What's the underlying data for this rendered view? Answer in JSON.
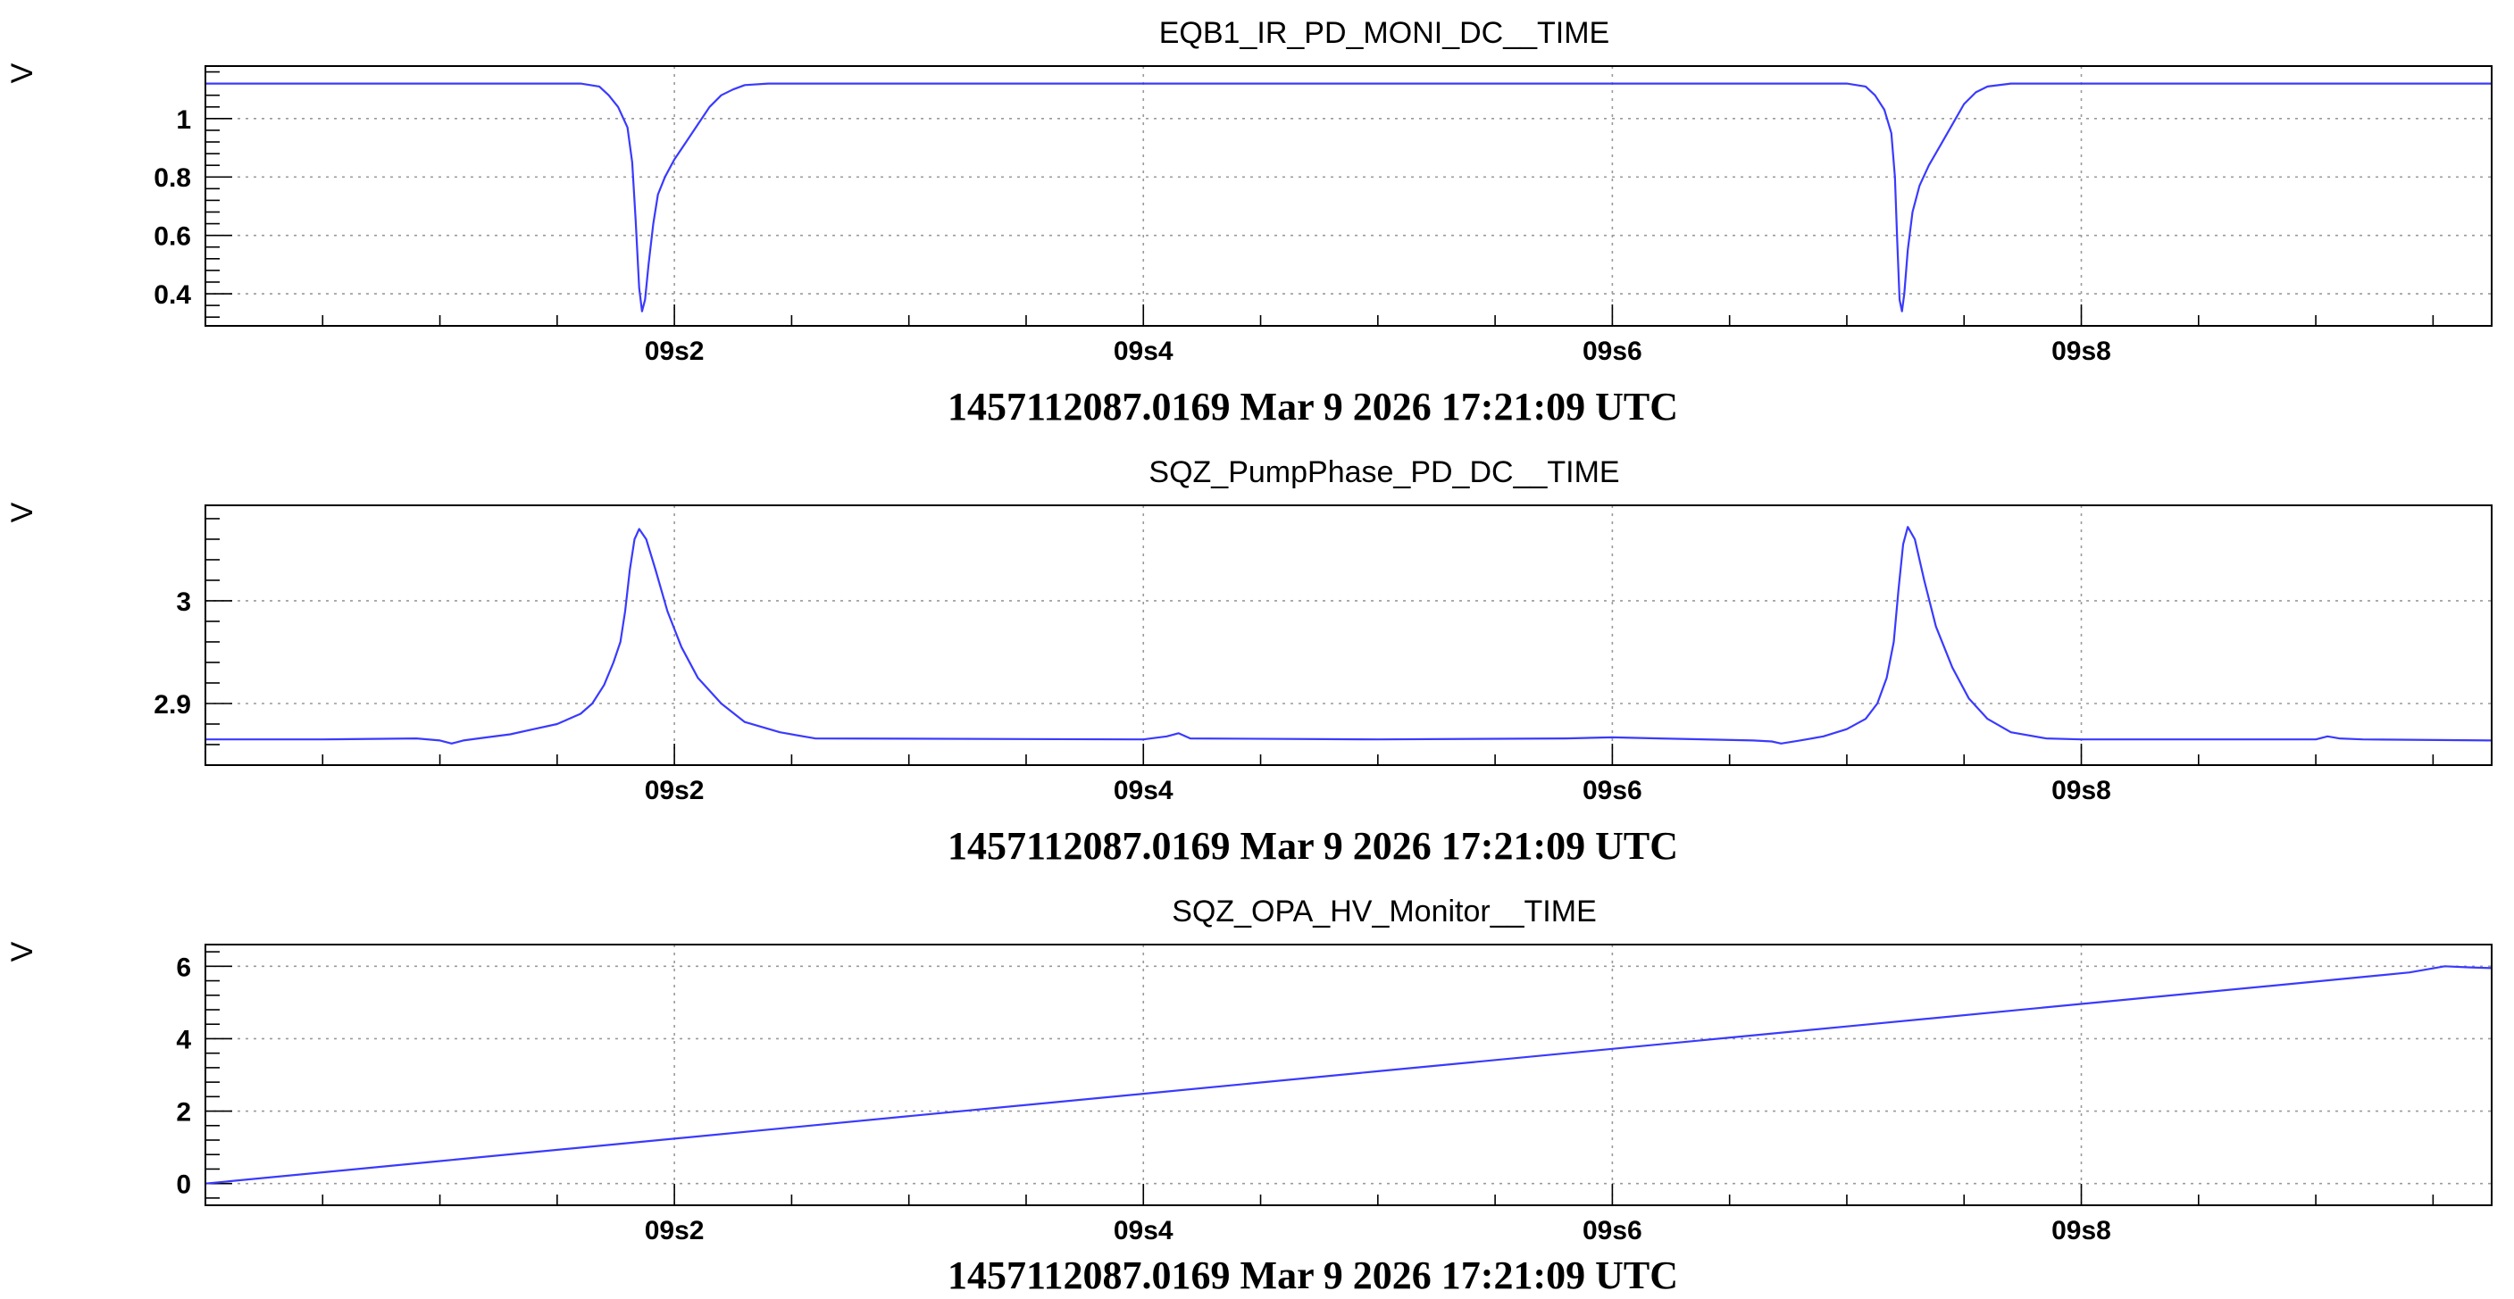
{
  "chart_data": [
    {
      "type": "line",
      "title": "EQB1_IR_PD_MONI_DC__TIME",
      "ylabel": "V",
      "xlabel": "1457112087.0169 Mar 9 2026 17:21:09 UTC",
      "xlim": [
        0,
        0.975
      ],
      "ylim": [
        0.29,
        1.18
      ],
      "y_major_ticks": [
        0.4,
        0.6,
        0.8,
        1
      ],
      "y_tick_labels": [
        "0.4",
        "0.6",
        "0.8",
        "1"
      ],
      "x_major_ticks": [
        0.2,
        0.4,
        0.6,
        0.8
      ],
      "x_tick_labels": [
        "09s2",
        "09s4",
        "09s6",
        "09s8"
      ],
      "grid": true,
      "series": [
        {
          "color": "#3a3aff",
          "x": [
            0,
            0.16,
            0.168,
            0.172,
            0.176,
            0.18,
            0.182,
            0.1835,
            0.185,
            0.1862,
            0.1875,
            0.189,
            0.191,
            0.193,
            0.196,
            0.2,
            0.205,
            0.21,
            0.215,
            0.22,
            0.225,
            0.23,
            0.24,
            0.7,
            0.708,
            0.712,
            0.716,
            0.719,
            0.7205,
            0.7215,
            0.7225,
            0.7235,
            0.7245,
            0.726,
            0.728,
            0.731,
            0.735,
            0.74,
            0.745,
            0.75,
            0.755,
            0.76,
            0.77,
            0.975
          ],
          "values": [
            1.12,
            1.12,
            1.11,
            1.08,
            1.04,
            0.97,
            0.85,
            0.65,
            0.42,
            0.34,
            0.38,
            0.5,
            0.64,
            0.74,
            0.8,
            0.86,
            0.92,
            0.98,
            1.04,
            1.08,
            1.1,
            1.115,
            1.12,
            1.12,
            1.11,
            1.08,
            1.03,
            0.95,
            0.8,
            0.58,
            0.38,
            0.34,
            0.4,
            0.55,
            0.68,
            0.77,
            0.84,
            0.91,
            0.98,
            1.05,
            1.09,
            1.11,
            1.12,
            1.12
          ]
        }
      ]
    },
    {
      "type": "line",
      "title": "SQZ_PumpPhase_PD_DC__TIME",
      "ylabel": "V",
      "xlabel": "1457112087.0169 Mar 9 2026 17:21:09 UTC",
      "xlim": [
        0,
        0.975
      ],
      "ylim": [
        2.84,
        3.093
      ],
      "y_major_ticks": [
        2.9,
        3.0
      ],
      "y_tick_labels": [
        "2.9",
        "3"
      ],
      "x_major_ticks": [
        0.2,
        0.4,
        0.6,
        0.8
      ],
      "x_tick_labels": [
        "09s2",
        "09s4",
        "09s6",
        "09s8"
      ],
      "grid": true,
      "series": [
        {
          "color": "#3a3aff",
          "x": [
            0,
            0.05,
            0.09,
            0.1,
            0.105,
            0.11,
            0.12,
            0.13,
            0.14,
            0.15,
            0.16,
            0.165,
            0.17,
            0.174,
            0.177,
            0.179,
            0.181,
            0.183,
            0.185,
            0.188,
            0.192,
            0.197,
            0.203,
            0.21,
            0.22,
            0.23,
            0.245,
            0.26,
            0.4,
            0.41,
            0.415,
            0.42,
            0.5,
            0.58,
            0.6,
            0.62,
            0.66,
            0.668,
            0.672,
            0.68,
            0.69,
            0.7,
            0.708,
            0.713,
            0.717,
            0.72,
            0.722,
            0.724,
            0.726,
            0.729,
            0.733,
            0.738,
            0.745,
            0.752,
            0.76,
            0.77,
            0.785,
            0.8,
            0.9,
            0.905,
            0.91,
            0.92,
            0.975
          ],
          "values": [
            2.865,
            2.865,
            2.866,
            2.864,
            2.861,
            2.864,
            2.867,
            2.87,
            2.875,
            2.88,
            2.89,
            2.9,
            2.918,
            2.94,
            2.96,
            2.99,
            3.03,
            3.06,
            3.07,
            3.06,
            3.03,
            2.99,
            2.955,
            2.925,
            2.9,
            2.882,
            2.872,
            2.866,
            2.865,
            2.868,
            2.871,
            2.866,
            2.865,
            2.866,
            2.867,
            2.866,
            2.864,
            2.863,
            2.861,
            2.864,
            2.868,
            2.875,
            2.885,
            2.9,
            2.925,
            2.96,
            3.01,
            3.055,
            3.072,
            3.06,
            3.02,
            2.975,
            2.935,
            2.905,
            2.885,
            2.872,
            2.866,
            2.865,
            2.865,
            2.868,
            2.866,
            2.865,
            2.864
          ]
        }
      ]
    },
    {
      "type": "line",
      "title": "SQZ_OPA_HV_Monitor__TIME",
      "ylabel": "V",
      "xlabel": "1457112087.0169 Mar 9 2026 17:21:09 UTC",
      "xlim": [
        0,
        0.975
      ],
      "ylim": [
        -0.6,
        6.6
      ],
      "y_major_ticks": [
        0,
        2,
        4,
        6
      ],
      "y_tick_labels": [
        "0",
        "2",
        "4",
        "6"
      ],
      "x_major_ticks": [
        0.2,
        0.4,
        0.6,
        0.8
      ],
      "x_tick_labels": [
        "09s2",
        "09s4",
        "09s6",
        "09s8"
      ],
      "grid": true,
      "series": [
        {
          "color": "#3a3aff",
          "x": [
            0,
            0.1,
            0.2,
            0.3,
            0.4,
            0.5,
            0.6,
            0.7,
            0.8,
            0.9,
            0.94,
            0.955,
            0.965,
            0.975
          ],
          "values": [
            0.0,
            0.62,
            1.24,
            1.86,
            2.48,
            3.1,
            3.72,
            4.34,
            4.96,
            5.58,
            5.83,
            6.0,
            5.97,
            5.95
          ]
        }
      ]
    }
  ]
}
